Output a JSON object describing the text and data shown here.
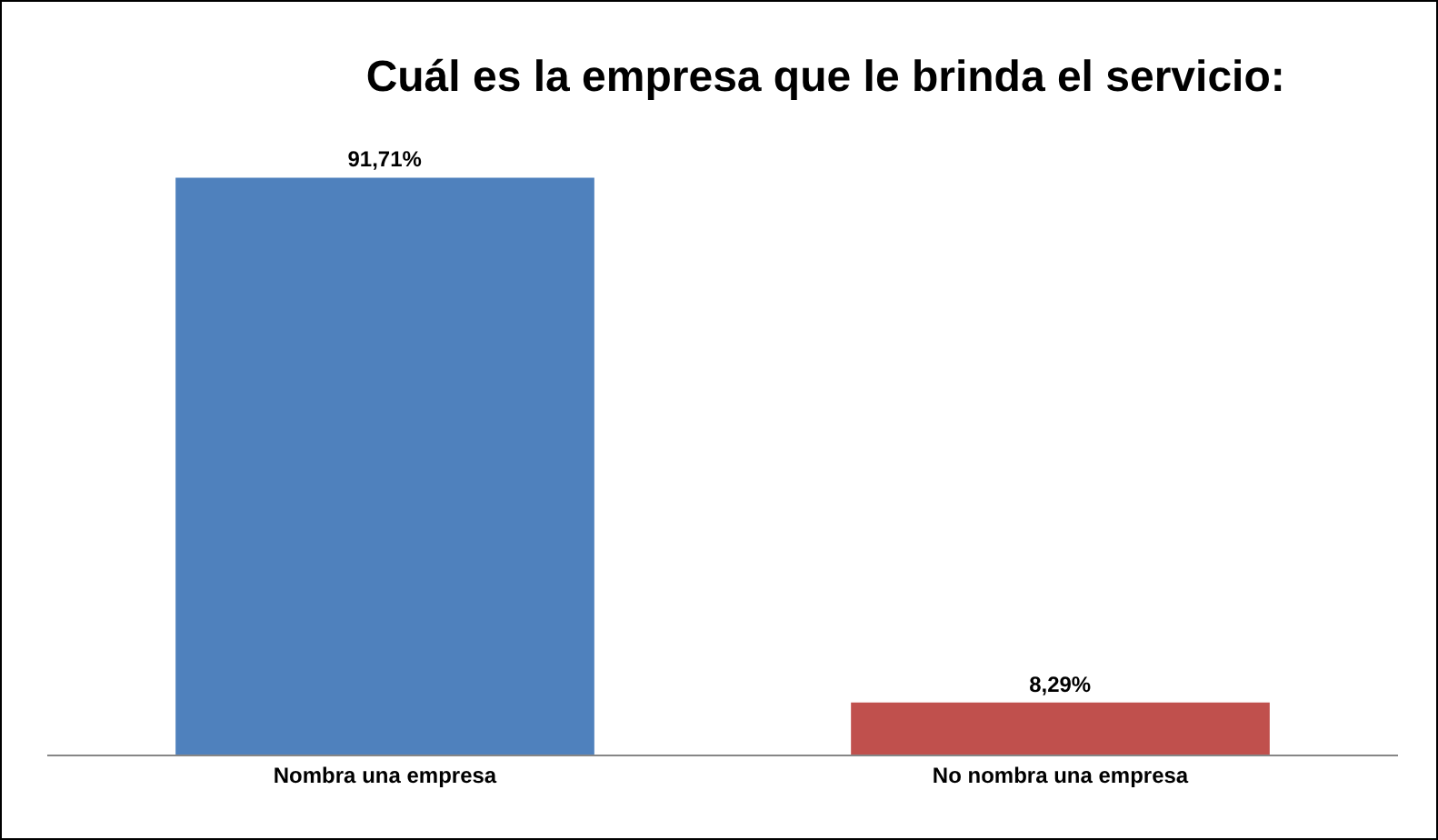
{
  "chart_data": {
    "type": "bar",
    "title": "Cuál es la empresa que le brinda el servicio:",
    "categories": [
      "Nombra una empresa",
      "No nombra una empresa"
    ],
    "values": [
      91.71,
      8.29
    ],
    "colors": [
      "#4f81bd",
      "#c0504d"
    ],
    "value_labels": [
      "91,71%",
      "8,29%"
    ],
    "grid": false
  }
}
